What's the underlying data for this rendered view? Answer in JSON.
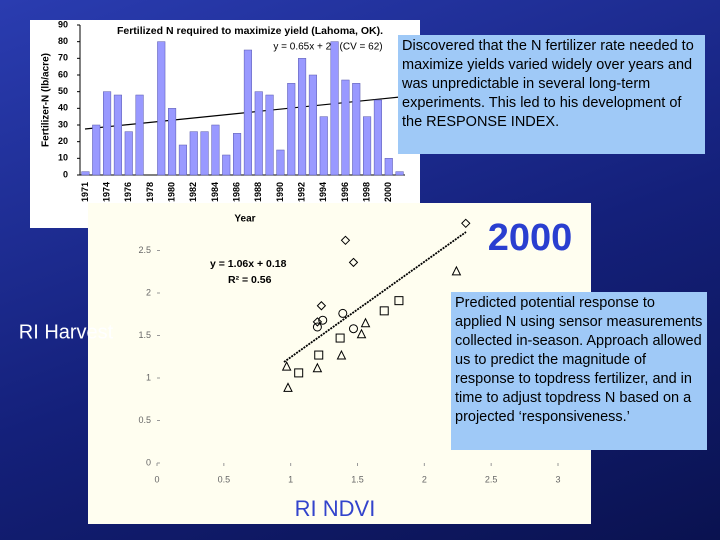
{
  "year_label": "2000",
  "text_boxes": [
    "Discovered that the N fertilizer rate needed to maximize yields varied widely over years and was unpredictable in several long-term experiments.  This led to his development of the RESPONSE INDEX.",
    "Predicted potential response to applied N using sensor measurements collected in-season. Approach allowed us to predict the magnitude of response to topdress fertilizer, and in time to adjust topdress N based on a projected ‘responsiveness.’"
  ],
  "chart_data": [
    {
      "type": "bar",
      "title": "Fertilized N required to maximize yield (Lahoma, OK).",
      "annotation": "y = 0.65x + 27  (CV = 62)",
      "y_label": "Fertilizer-N (lb/acre)",
      "x_label": "Year",
      "categories": [
        "1971",
        null,
        "1974",
        null,
        "1976",
        null,
        "1978",
        null,
        "1980",
        null,
        "1982",
        null,
        "1984",
        null,
        "1986",
        null,
        "1988",
        null,
        "1990",
        null,
        "1992",
        null,
        "1994",
        null,
        "1996",
        null,
        "1998",
        null,
        "2000",
        null
      ],
      "values": [
        2,
        30,
        50,
        48,
        26,
        48,
        0,
        80,
        40,
        18,
        26,
        26,
        30,
        12,
        25,
        75,
        50,
        48,
        15,
        55,
        70,
        60,
        35,
        80,
        57,
        55,
        35,
        45,
        10,
        2
      ],
      "color": "#9999ff",
      "ylim": [
        0,
        90
      ],
      "yticks": [
        0,
        10,
        20,
        30,
        40,
        50,
        60,
        70,
        80,
        90
      ]
    },
    {
      "type": "scatter",
      "annotation": "y = 1.06x + 0.18",
      "annotation2": "R² = 0.56",
      "x_label": "RI NDVI",
      "y_label": "RI Harvest",
      "xlim": [
        0,
        3
      ],
      "xticks": [
        0,
        0.5,
        1,
        1.5,
        2,
        2.5,
        3
      ],
      "ylim": [
        0,
        3
      ],
      "yticks": [
        0,
        0.5,
        1,
        1.5,
        2,
        2.5
      ],
      "series": [
        {
          "marker": "diamond",
          "color": "#000000",
          "x": [
            2.31,
            1.41,
            1.47,
            1.23,
            1.2
          ],
          "values": [
            2.82,
            2.62,
            2.36,
            1.85,
            1.66
          ]
        },
        {
          "marker": "square",
          "color": "#000000",
          "x": [
            1.81,
            1.7,
            1.37,
            1.21,
            1.06
          ],
          "values": [
            1.91,
            1.79,
            1.47,
            1.27,
            1.06
          ]
        },
        {
          "marker": "circle",
          "color": "#000000",
          "x": [
            1.39,
            1.24,
            1.47,
            1.2
          ],
          "values": [
            1.76,
            1.68,
            1.58,
            1.6
          ]
        },
        {
          "marker": "triangle",
          "color": "#000000",
          "x": [
            2.24,
            1.56,
            1.53,
            1.38,
            1.2,
            0.97,
            0.98
          ],
          "values": [
            2.26,
            1.65,
            1.52,
            1.27,
            1.12,
            1.14,
            0.89
          ]
        }
      ]
    }
  ]
}
